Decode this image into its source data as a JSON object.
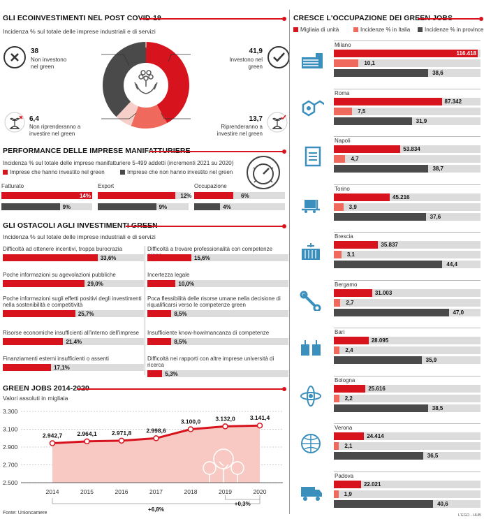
{
  "colors": {
    "red": "#d7141e",
    "salmon": "#ef6a5c",
    "dark": "#4a4a4a",
    "grey": "#dcdcdc"
  },
  "eco": {
    "title": "GLI ECOINVESTIMENTI NEL POST COVID-19",
    "subtitle": "Incidenza % sul totale delle imprese industriali e di servizi",
    "items": [
      {
        "value": "38",
        "label": "Non investono nel green"
      },
      {
        "value": "41,9",
        "label": "Investono nel green"
      },
      {
        "value": "6,4",
        "label": "Non riprenderanno a investire nel green"
      },
      {
        "value": "13,7",
        "label": "Riprenderanno a investire nel green"
      }
    ]
  },
  "perf": {
    "title": "PERFORMANCE DELLE IMPRESE MANIFATTURIERE",
    "subtitle": "Incidenza % sul totale delle imprese manifatturiere 5-499 addetti (incrementi 2021 su 2020)",
    "legend_a": "Imprese che hanno investito nel green",
    "legend_b": "Imprese che non hanno investito nel green",
    "groups": [
      {
        "label": "Fatturato",
        "a": "14%",
        "b": "9%"
      },
      {
        "label": "Export",
        "a": "12%",
        "b": "9%"
      },
      {
        "label": "Occupazione",
        "a": "6%",
        "b": "4%"
      }
    ]
  },
  "ost": {
    "title": "GLI OSTACOLI AGLI INVESTIMENTI GREEN",
    "subtitle": "Incidenza % sul totale delle imprese industriali e di servizi",
    "left": [
      {
        "label": "Difficoltà ad ottenere incentivi, troppa burocrazia",
        "value": "33,6%"
      },
      {
        "label": "Poche informazioni su agevolazioni pubbliche",
        "value": "29,0%"
      },
      {
        "label": "Poche informazioni sugli effetti positivi degli investimenti nella sostenibilità e competitività",
        "value": "25,7%"
      },
      {
        "label": "Risorse economiche insufficienti all'interno dell'imprese",
        "value": "21,4%"
      },
      {
        "label": "Finanziamenti esterni insufficienti o assenti",
        "value": "17,1%"
      }
    ],
    "right": [
      {
        "label": "Difficoltà a trovare professionalità con competenze green",
        "value": "15,6%"
      },
      {
        "label": "Incertezza legale",
        "value": "10,0%"
      },
      {
        "label": "Poca flessibilità delle risorse umane nella decisione di riqualificarsi verso le competenze green",
        "value": "8,5%"
      },
      {
        "label": "Insufficiente know-how/mancanza di competenze",
        "value": "8,5%"
      },
      {
        "label": "Difficoltà nei rapporti con altre imprese università di ricerca",
        "value": "5,3%"
      }
    ]
  },
  "jobs": {
    "title": "GREEN JOBS 2014-2020",
    "subtitle": "Valori assoluti in migliaia",
    "note_a": "+6,8%",
    "note_b": "+0,3%",
    "source": "Fonte: Unioncamere"
  },
  "cities": {
    "title": "CRESCE L'OCCUPAZIONE DEI GREEN JOBS",
    "legend": [
      "Migliaia di unità",
      "Incidenze % in Italia",
      "Incidenze % in province"
    ],
    "credit": "L'EGO - HUB"
  },
  "chart_data": [
    {
      "type": "pie",
      "title": "GLI ECOINVESTIMENTI NEL POST COVID-19",
      "labels": [
        "Investono nel green",
        "Riprenderanno a investire nel green",
        "Non riprenderanno a investire nel green",
        "Non investono nel green"
      ],
      "values": [
        41.9,
        13.7,
        6.4,
        38
      ]
    },
    {
      "type": "bar",
      "title": "PERFORMANCE DELLE IMPRESE MANIFATTURIERE",
      "categories": [
        "Fatturato",
        "Export",
        "Occupazione"
      ],
      "series": [
        {
          "name": "Imprese che hanno investito nel green",
          "values": [
            14,
            12,
            6
          ]
        },
        {
          "name": "Imprese che non hanno investito nel green",
          "values": [
            9,
            9,
            4
          ]
        }
      ]
    },
    {
      "type": "bar",
      "title": "GLI OSTACOLI AGLI INVESTIMENTI GREEN",
      "categories": [
        "Difficoltà ad ottenere incentivi, troppa burocrazia",
        "Poche informazioni su agevolazioni pubbliche",
        "Poche informazioni sugli effetti positivi degli investimenti nella sostenibilità e competitività",
        "Risorse economiche insufficienti all'interno dell'imprese",
        "Finanziamenti esterni insufficienti o assenti",
        "Difficoltà a trovare professionalità con competenze green",
        "Incertezza legale",
        "Poca flessibilità delle risorse umane nella decisione di riqualificarsi verso le competenze green",
        "Insufficiente know-how/mancanza di competenze",
        "Difficoltà nei rapporti con altre imprese università di ricerca"
      ],
      "values": [
        33.6,
        29.0,
        25.7,
        21.4,
        17.1,
        15.6,
        10.0,
        8.5,
        8.5,
        5.3
      ],
      "xlim": [
        0,
        50
      ]
    },
    {
      "type": "area",
      "title": "GREEN JOBS 2014-2020",
      "ylabel": "Valori assoluti in migliaia",
      "x": [
        "2014",
        "2015",
        "2016",
        "2017",
        "2018",
        "2019",
        "2020"
      ],
      "values": [
        2942.7,
        2964.1,
        2971.8,
        2998.6,
        3100.0,
        3132.0,
        3141.4
      ],
      "value_labels": [
        "2.942,7",
        "2.964,1",
        "2.971,8",
        "2.998,6",
        "3.100,0",
        "3.132,0",
        "3.141,4"
      ],
      "yticks": [
        "3.300",
        "3.100",
        "2.900",
        "2.700",
        "2.500"
      ],
      "ylim": [
        2500,
        3300
      ]
    },
    {
      "type": "bar",
      "title": "CRESCE L'OCCUPAZIONE DEI GREEN JOBS",
      "categories": [
        "Milano",
        "Roma",
        "Napoli",
        "Torino",
        "Brescia",
        "Bergamo",
        "Bari",
        "Bologna",
        "Verona",
        "Padova"
      ],
      "series": [
        {
          "name": "Migliaia di unità",
          "values": [
            116418,
            87342,
            53834,
            45216,
            35837,
            31003,
            28095,
            25616,
            24414,
            22021
          ],
          "labels": [
            "116.418",
            "87.342",
            "53.834",
            "45.216",
            "35.837",
            "31.003",
            "28.095",
            "25.616",
            "24.414",
            "22.021"
          ]
        },
        {
          "name": "Incidenze % in Italia",
          "values": [
            10.1,
            7.5,
            4.7,
            3.9,
            3.1,
            2.7,
            2.4,
            2.2,
            2.1,
            1.9
          ],
          "labels": [
            "10,1",
            "7,5",
            "4,7",
            "3,9",
            "3,1",
            "2,7",
            "2,4",
            "2,2",
            "2,1",
            "1,9"
          ]
        },
        {
          "name": "Incidenze % in province",
          "values": [
            38.6,
            31.9,
            38.7,
            37.6,
            44.4,
            47.0,
            35.9,
            38.5,
            36.5,
            40.6
          ],
          "labels": [
            "38,6",
            "31,9",
            "38,7",
            "37,6",
            "44,4",
            "47,0",
            "35,9",
            "38,5",
            "36,5",
            "40,6"
          ]
        }
      ]
    }
  ]
}
